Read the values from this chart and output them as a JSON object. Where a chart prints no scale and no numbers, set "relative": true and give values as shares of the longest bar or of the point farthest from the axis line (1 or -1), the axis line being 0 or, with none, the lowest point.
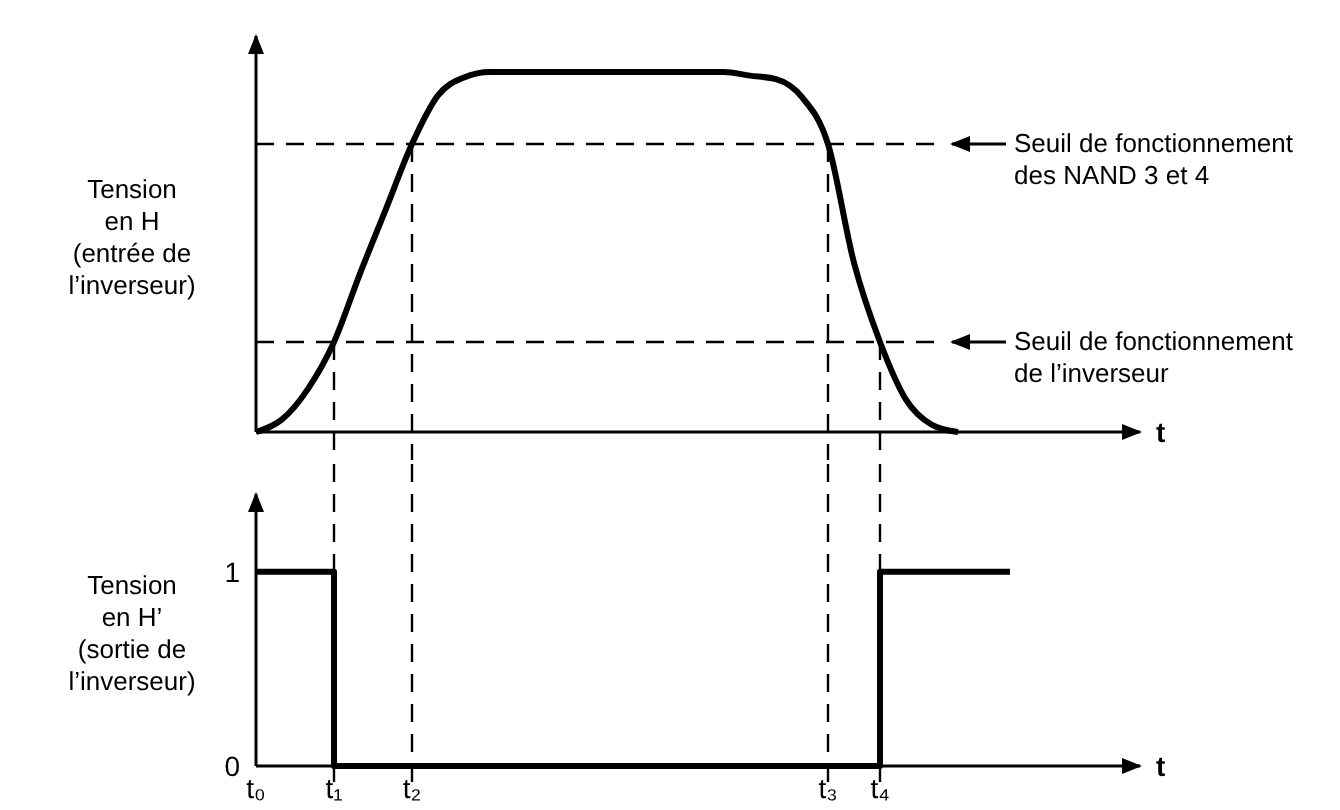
{
  "chart_data": [
    {
      "type": "line",
      "relative": true,
      "xlabel": "t",
      "ylabel": "Tension\nen H\n(entrée de\nl’inverseur)",
      "tick_labels": false,
      "categories": [
        "t₀",
        null,
        null,
        "t₁",
        null,
        null,
        "t₂",
        null,
        null,
        null,
        null,
        null,
        null,
        null,
        null,
        null,
        null,
        null,
        null,
        null,
        null,
        null,
        "t₃",
        null,
        "t₄",
        null,
        null,
        null,
        null,
        null,
        null,
        null,
        null,
        null,
        null
      ],
      "series": [
        {
          "color": "#000000",
          "values": [
            0,
            0.035,
            0.12,
            0.25,
            0.44,
            0.62,
            0.8,
            0.935,
            0.985,
            1,
            1,
            1,
            1,
            1,
            1,
            1,
            1,
            1,
            1,
            0.99,
            0.98,
            0.93,
            0.8,
            0.47,
            0.25,
            0.09,
            0.02,
            0,
            null,
            null,
            null,
            null,
            null,
            null,
            null
          ]
        }
      ],
      "ref_lines": [
        {
          "axis": "y",
          "value": 0.8,
          "label": "Seuil de fonctionnement\ndes NAND 3 et 4",
          "line_style": "dashed"
        },
        {
          "axis": "y",
          "value": 0.25,
          "label": "Seuil de fonctionnement\nde l’inverseur",
          "line_style": "dashed"
        },
        {
          "axis": "x",
          "value": "t₁",
          "line_style": "dashed"
        },
        {
          "axis": "x",
          "value": "t₂",
          "line_style": "dashed"
        },
        {
          "axis": "x",
          "value": "t₃",
          "line_style": "dashed"
        },
        {
          "axis": "x",
          "value": "t₄",
          "line_style": "dashed"
        }
      ]
    },
    {
      "type": "step",
      "ylim": [
        0,
        1.4
      ],
      "yticks": [
        0,
        1
      ],
      "xlabel": "t",
      "ylabel": "Tension\nen H’\n(sortie de\nl’inverseur)",
      "categories": [
        "t₀",
        null,
        null,
        "t₁",
        null,
        null,
        "t₂",
        null,
        null,
        null,
        null,
        null,
        null,
        null,
        null,
        null,
        null,
        null,
        null,
        null,
        null,
        null,
        "t₃",
        null,
        "t₄",
        null,
        null,
        null,
        null,
        null,
        null,
        null,
        null,
        null,
        null
      ],
      "series": [
        {
          "color": "#000000",
          "values": [
            1,
            1,
            1,
            0,
            0,
            0,
            0,
            0,
            0,
            0,
            0,
            0,
            0,
            0,
            0,
            0,
            0,
            0,
            0,
            0,
            0,
            0,
            0,
            0,
            1,
            1,
            1,
            1,
            1,
            1,
            null,
            null,
            null,
            null,
            null
          ]
        }
      ],
      "ref_lines": [
        {
          "axis": "x",
          "value": "t₁",
          "line_style": "dashed"
        },
        {
          "axis": "x",
          "value": "t₂",
          "line_style": "dashed"
        },
        {
          "axis": "x",
          "value": "t₃",
          "line_style": "dashed"
        },
        {
          "axis": "x",
          "value": "t₄",
          "line_style": "dashed"
        }
      ]
    }
  ]
}
